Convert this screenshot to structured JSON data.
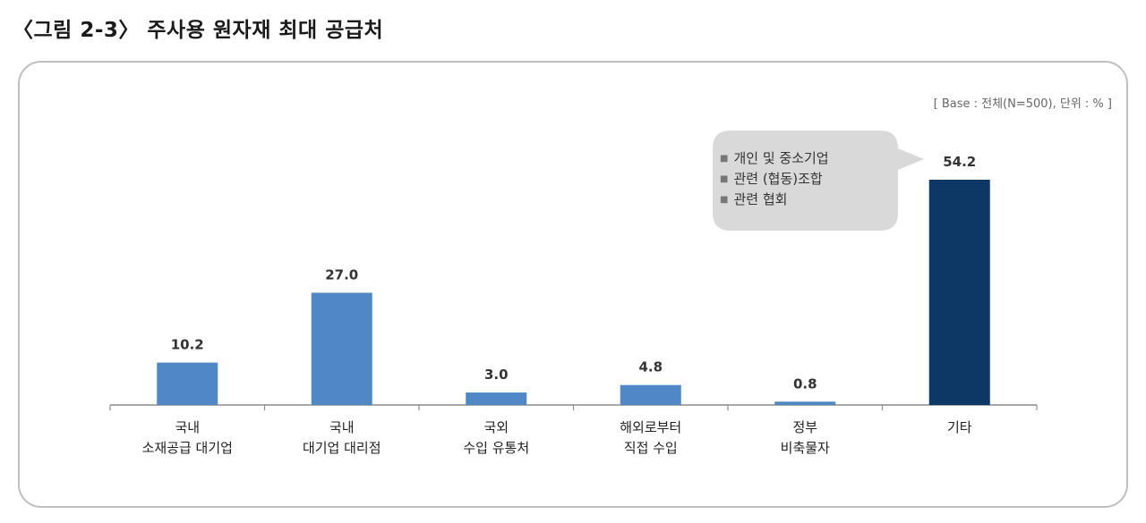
{
  "figure": {
    "title": "〈그림 2-3〉 주사용 원자재 최대 공급처",
    "base_note": "[ Base : 전체(N=500),  단위 : % ]"
  },
  "callout": {
    "items": [
      "개인 및 중소기업",
      "관련 (협동)조합",
      "관련 협회"
    ],
    "bullet": "■"
  },
  "colors": {
    "bar": "#4f88c4",
    "highlight": "#0d3866",
    "axis": "#8c8c8c",
    "callout_bg": "#d9d9d9"
  },
  "chart_data": {
    "type": "bar",
    "categories": [
      [
        "국내",
        "소재공급 대기업"
      ],
      [
        "국내",
        "대기업 대리점"
      ],
      [
        "국외",
        "수입 유통처"
      ],
      [
        "해외로부터",
        "직접 수입"
      ],
      [
        "정부",
        "비축물자"
      ],
      [
        "기타"
      ]
    ],
    "values": [
      10.2,
      27.0,
      3.0,
      4.8,
      0.8,
      54.2
    ],
    "value_labels": [
      "10.2",
      "27.0",
      "3.0",
      "4.8",
      "0.8",
      "54.2"
    ],
    "highlight_index": 5,
    "ylim": [
      0,
      60
    ],
    "grid": false,
    "xlabel": "",
    "ylabel": ""
  }
}
